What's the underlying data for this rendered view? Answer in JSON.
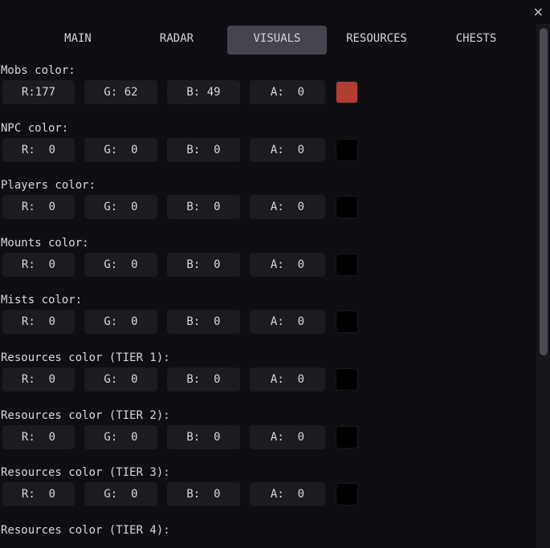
{
  "window": {
    "close_icon": "close-icon",
    "close_glyph": "×"
  },
  "tabs": [
    {
      "label": "MAIN",
      "active": false
    },
    {
      "label": "RADAR",
      "active": false
    },
    {
      "label": "VISUALS",
      "active": true
    },
    {
      "label": "RESOURCES",
      "active": false
    },
    {
      "label": "CHESTS",
      "active": false
    }
  ],
  "colors": {
    "accent_tab": "#45444f",
    "background": "#100e12",
    "field": "#1c1b21"
  },
  "sections": [
    {
      "label": "Mobs color:",
      "r": "R:177",
      "g": "G: 62",
      "b": "B: 49",
      "a": "A:  0",
      "swatch": "#b13e31"
    },
    {
      "label": "NPC color:",
      "r": "R:  0",
      "g": "G:  0",
      "b": "B:  0",
      "a": "A:  0",
      "swatch": "#000000"
    },
    {
      "label": "Players color:",
      "r": "R:  0",
      "g": "G:  0",
      "b": "B:  0",
      "a": "A:  0",
      "swatch": "#000000"
    },
    {
      "label": "Mounts color:",
      "r": "R:  0",
      "g": "G:  0",
      "b": "B:  0",
      "a": "A:  0",
      "swatch": "#000000"
    },
    {
      "label": "Mists color:",
      "r": "R:  0",
      "g": "G:  0",
      "b": "B:  0",
      "a": "A:  0",
      "swatch": "#000000"
    },
    {
      "label": "Resources color (TIER 1):",
      "r": "R:  0",
      "g": "G:  0",
      "b": "B:  0",
      "a": "A:  0",
      "swatch": "#000000"
    },
    {
      "label": "Resources color (TIER 2):",
      "r": "R:  0",
      "g": "G:  0",
      "b": "B:  0",
      "a": "A:  0",
      "swatch": "#000000"
    },
    {
      "label": "Resources color (TIER 3):",
      "r": "R:  0",
      "g": "G:  0",
      "b": "B:  0",
      "a": "A:  0",
      "swatch": "#000000"
    },
    {
      "label": "Resources color (TIER 4):"
    }
  ]
}
